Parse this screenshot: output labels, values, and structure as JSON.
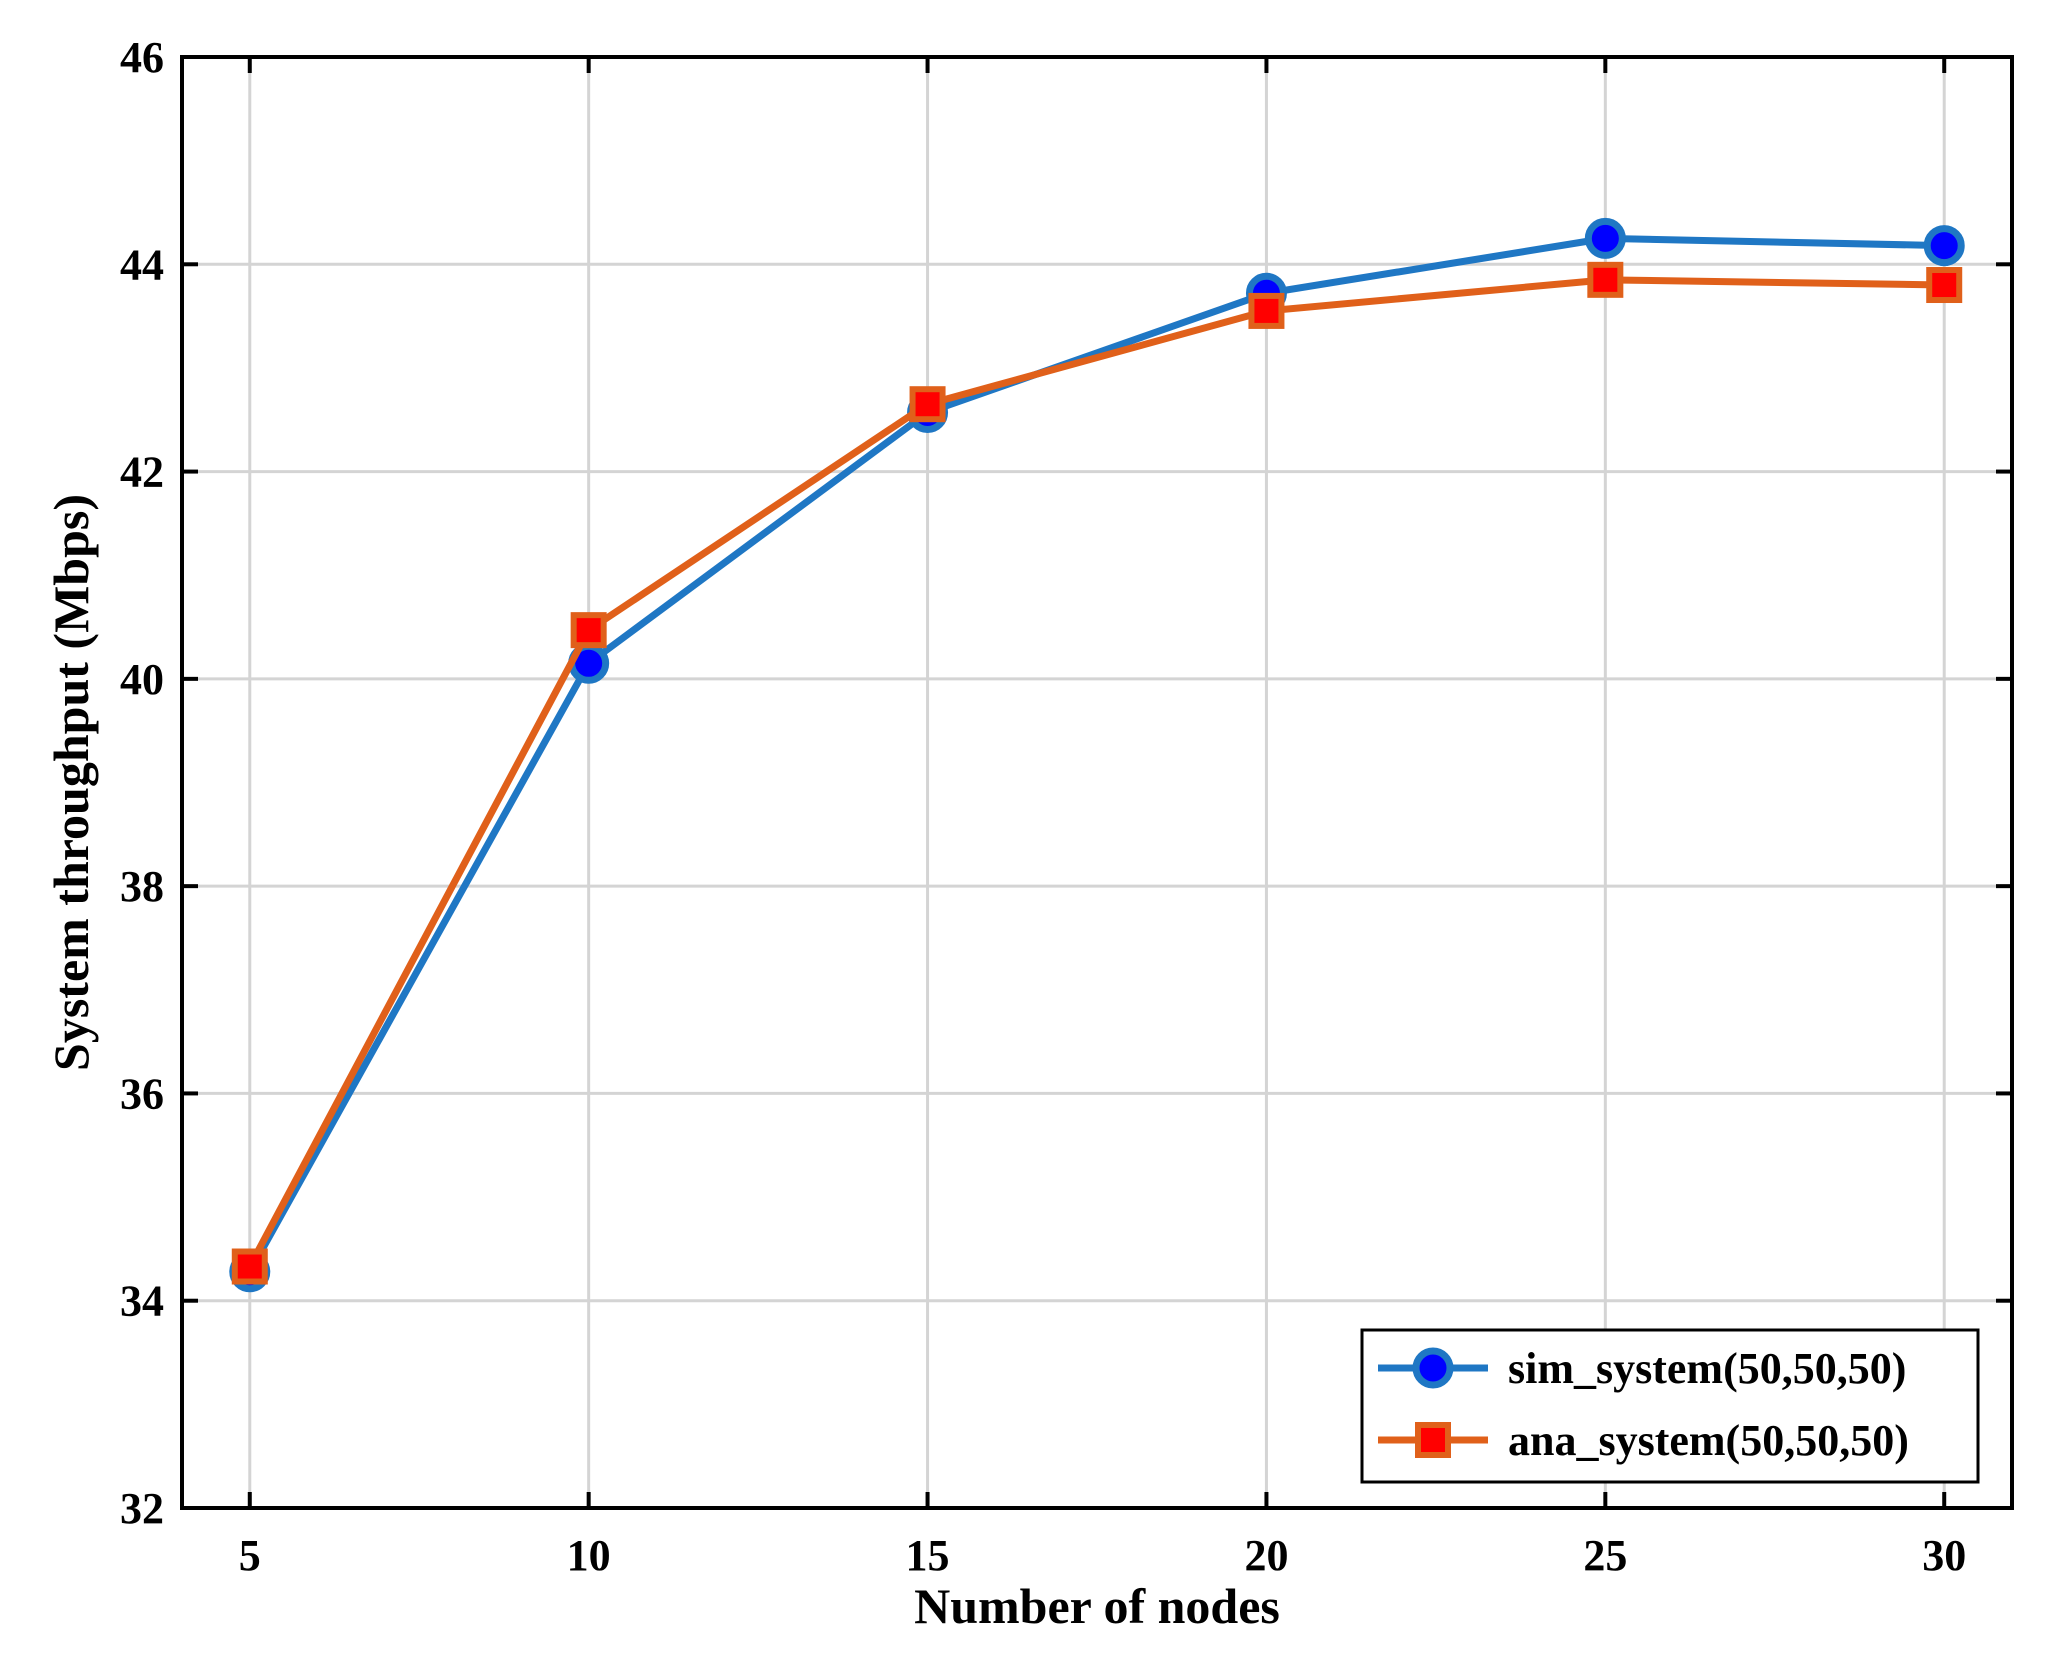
{
  "chart_data": {
    "type": "line",
    "xlabel": "Number of nodes",
    "ylabel": "System throughput (Mbps)",
    "x": [
      5,
      10,
      15,
      20,
      25,
      30
    ],
    "xlim": [
      4,
      31
    ],
    "ylim": [
      32,
      46
    ],
    "xticks": [
      "5",
      "10",
      "15",
      "20",
      "25",
      "30"
    ],
    "yticks": [
      "32",
      "34",
      "36",
      "38",
      "40",
      "42",
      "44",
      "46"
    ],
    "grid": true,
    "legend_position": "bottom-right",
    "series": [
      {
        "name": "sim_system(50,50,50)",
        "marker": "circle",
        "line_color": "#1f77c4",
        "marker_color": "#0000ff",
        "values": [
          34.28,
          40.15,
          42.57,
          43.72,
          44.25,
          44.18
        ]
      },
      {
        "name": "ana_system(50,50,50)",
        "marker": "square",
        "line_color": "#e0601a",
        "marker_color": "#ff0000",
        "values": [
          34.33,
          40.47,
          42.65,
          43.55,
          43.85,
          43.8
        ]
      }
    ]
  }
}
